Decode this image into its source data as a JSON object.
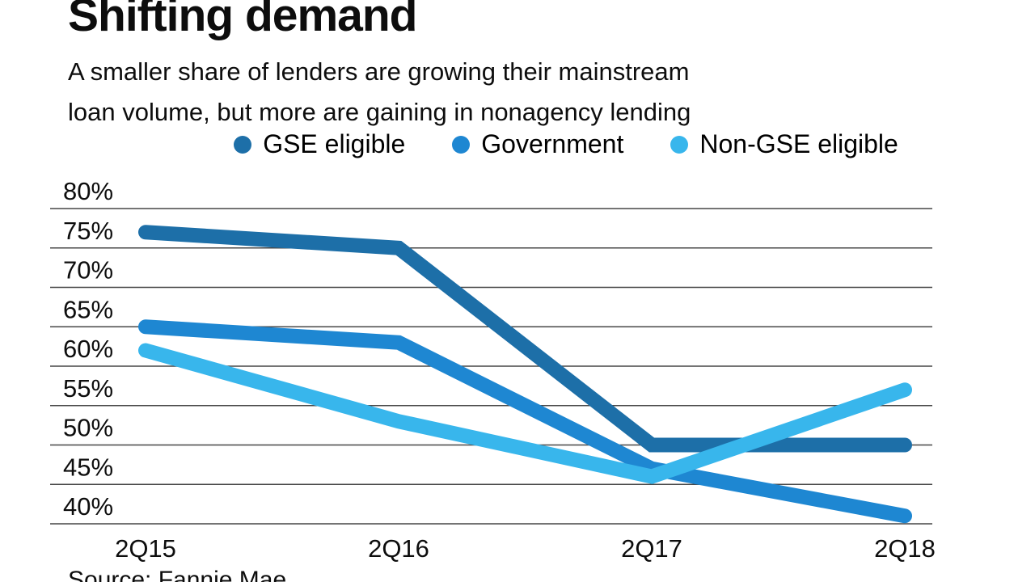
{
  "header": {
    "title": "Shifting demand",
    "subtitle_line1": "A smaller share of lenders are growing their mainstream",
    "subtitle_line2": "loan volume, but more are gaining in nonagency lending"
  },
  "chart_data": {
    "type": "line",
    "title": "Shifting demand",
    "categories": [
      "2Q15",
      "2Q16",
      "2Q17",
      "2Q18"
    ],
    "series": [
      {
        "name": "GSE eligible",
        "color": "#1d6fa8",
        "values": [
          77,
          75,
          50,
          50
        ]
      },
      {
        "name": "Government",
        "color": "#1e87d2",
        "values": [
          65,
          63,
          47,
          41
        ]
      },
      {
        "name": "Non-GSE eligible",
        "color": "#38b6ec",
        "values": [
          62,
          53,
          46,
          57
        ]
      }
    ],
    "yticks": [
      80,
      75,
      70,
      65,
      60,
      55,
      50,
      45,
      40
    ],
    "tick_suffix": "%",
    "ylim": [
      40,
      80
    ],
    "xlabel": "",
    "ylabel": "",
    "grid": "horizontal",
    "legend_position": "top"
  },
  "source": {
    "label": "Source: Fannie Mae"
  },
  "colors": {
    "background": "#ffffff",
    "text": "#0d0d0d",
    "gridline": "#474747"
  }
}
